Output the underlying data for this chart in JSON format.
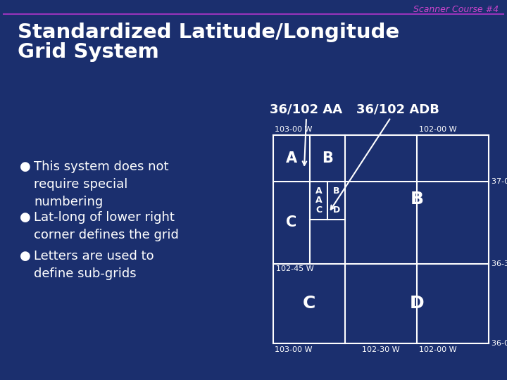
{
  "bg_color": "#1b2f6e",
  "title_line1": "Standardized Latitude/Longitude",
  "title_line2": "Grid System",
  "title_color": "#ffffff",
  "title_fontsize": 21,
  "header_text": "Scanner Course #4",
  "header_color": "#cc44cc",
  "header_fontsize": 9,
  "divider_color": "#9933bb",
  "bullet_color": "#ffffff",
  "bullet_fontsize": 13,
  "bullets": [
    "This system does not\nrequire special\nnumbering",
    "Lat-long of lower right\ncorner defines the grid",
    "Letters are used to\ndefine sub-grids"
  ],
  "grid_color": "#ffffff",
  "grid_linewidth": 1.5,
  "label_color": "#ffffff",
  "grid_label_fontsize": 8,
  "cell_letter_fontsize": 15,
  "large_cell_fontsize": 18,
  "small_cell_fontsize": 9,
  "heading_36_102_AA": "36/102 AA",
  "heading_36_102_ADB": "36/102 ADB",
  "heading_fontsize": 13
}
